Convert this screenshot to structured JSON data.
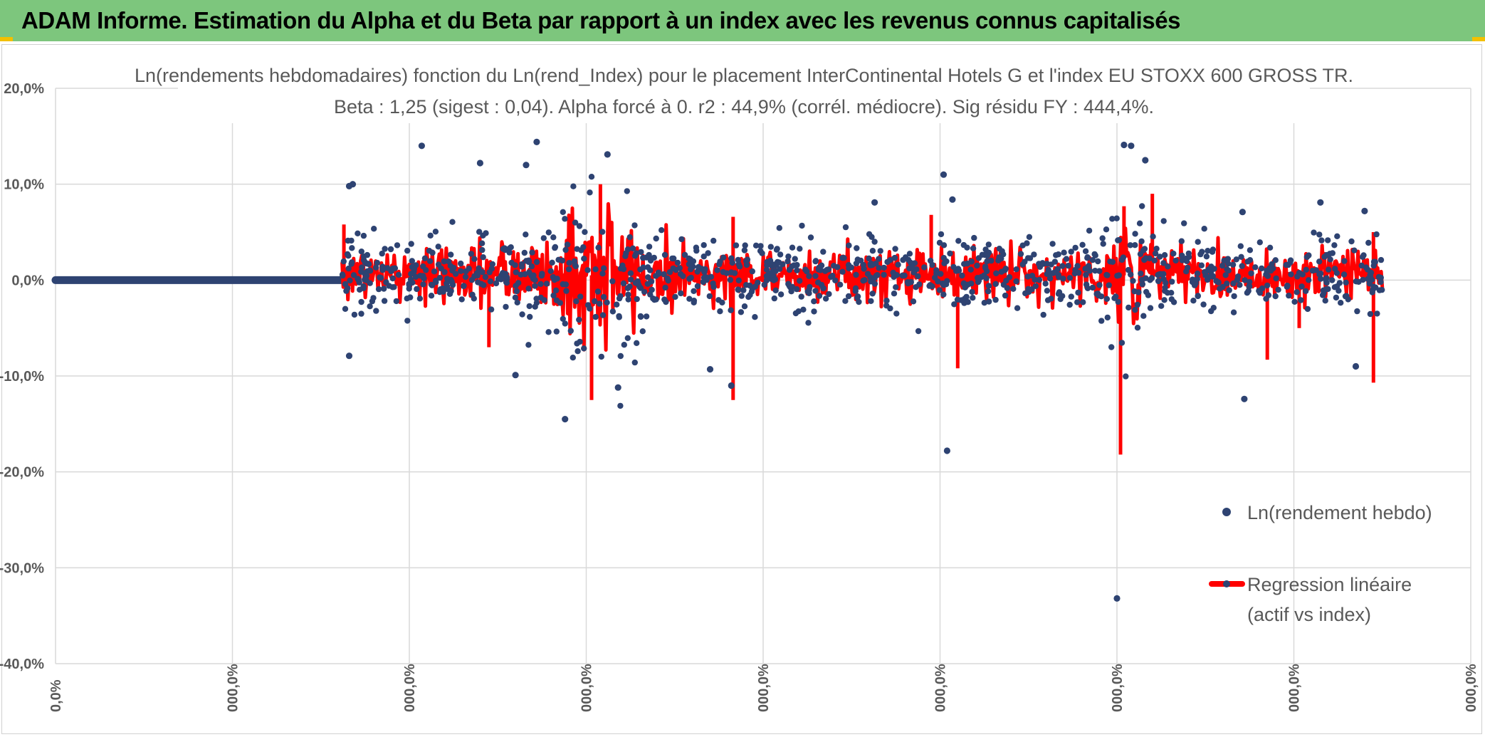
{
  "banner": {
    "title": "ADAM Informe. Estimation du Alpha et du Beta par rapport à un index avec les revenus connus capitalisés",
    "background": "#7dc67d"
  },
  "chart_data": {
    "type": "scatter",
    "title": "Ln(rendements hebdomadaires) fonction du Ln(rend_Index) pour le placement InterContinental Hotels G et l'index EU STOXX 600 GROSS TR.",
    "subtitle": "Beta : 1,25 (sigest : 0,04). Alpha forcé à 0. r2 : 44,9% (corrél. médiocre). Sig résidu FY : 444,4%.",
    "ylim": [
      -40,
      20
    ],
    "y_ticks": [
      "20,0%",
      "10,0%",
      "0,0%",
      "-10,0%",
      "-20,0%",
      "-30,0%",
      "-40,0%"
    ],
    "x_ticks": [
      "0,0%",
      "000,0%",
      "000,0%",
      "000,0%",
      "000,0%",
      "000,0%",
      "000,0%",
      "000,0%",
      "000,0%"
    ],
    "grid": true,
    "legend_position": "right",
    "series": [
      {
        "name": "Ln(rendement hebdo)",
        "color": "#2e4372",
        "kind": "scatter"
      },
      {
        "name": "Regression linéaire (actif vs index)",
        "color": "#ff0000",
        "kind": "line"
      }
    ],
    "legend": {
      "scatter_label": "Ln(rendement hebdo)",
      "line_label_1": "Regression linéaire",
      "line_label_2": "(actif vs index)"
    },
    "zero_segment": {
      "from_index": 0,
      "to_index": 1.62,
      "value": 0
    },
    "data_range_index": [
      1.62,
      7.5
    ],
    "outliers": [
      [
        1.66,
        9.8
      ],
      [
        1.68,
        10.0
      ],
      [
        1.66,
        -7.9
      ],
      [
        2.07,
        14.0
      ],
      [
        2.4,
        12.2
      ],
      [
        2.6,
        -9.9
      ],
      [
        2.66,
        12.0
      ],
      [
        2.72,
        14.4
      ],
      [
        2.88,
        -14.5
      ],
      [
        3.12,
        13.1
      ],
      [
        3.18,
        -11.2
      ],
      [
        3.7,
        -9.3
      ],
      [
        3.82,
        -11.0
      ],
      [
        4.63,
        8.1
      ],
      [
        5.02,
        11.0
      ],
      [
        5.04,
        -17.8
      ],
      [
        5.07,
        8.4
      ],
      [
        6.04,
        14.1
      ],
      [
        6.08,
        14.0
      ],
      [
        6.0,
        -33.2
      ],
      [
        6.16,
        12.5
      ],
      [
        6.72,
        -12.4
      ],
      [
        6.71,
        7.1
      ],
      [
        7.15,
        8.1
      ],
      [
        7.35,
        -9.0
      ],
      [
        7.4,
        7.2
      ]
    ],
    "regression_spikes": [
      [
        1.63,
        5.8
      ],
      [
        2.45,
        -7.0
      ],
      [
        3.03,
        -12.5
      ],
      [
        3.08,
        10.0
      ],
      [
        3.83,
        -12.5
      ],
      [
        3.83,
        6.6
      ],
      [
        4.95,
        6.8
      ],
      [
        5.1,
        -9.2
      ],
      [
        6.02,
        -18.2
      ],
      [
        6.04,
        7.7
      ],
      [
        6.2,
        9.0
      ],
      [
        6.85,
        -8.3
      ],
      [
        7.03,
        -5.0
      ],
      [
        7.45,
        -10.7
      ],
      [
        7.45,
        5.0
      ]
    ]
  }
}
